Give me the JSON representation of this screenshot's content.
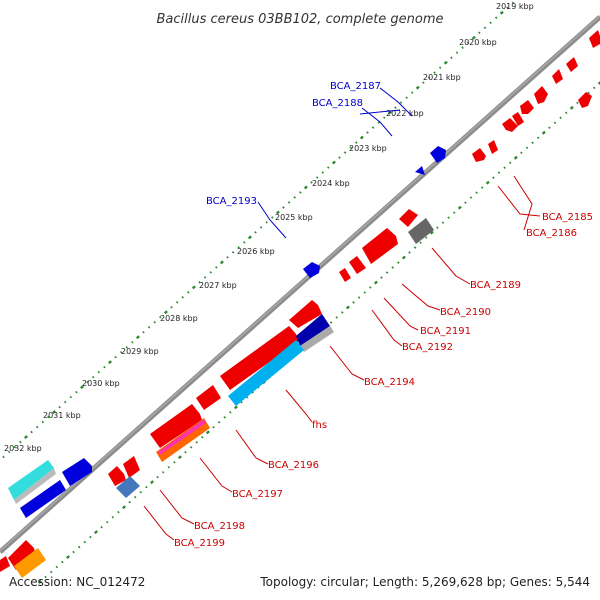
{
  "title": "Bacillus cereus 03BB102, complete genome",
  "footer": {
    "accession": "Accession: NC_012472",
    "summary": "Topology: circular; Length: 5,269,628 bp; Genes: 5,544"
  },
  "colors": {
    "backbone": "#8c8c8c",
    "tick_outer": "#2e8b2e",
    "tick_inner": "#2e8b2e",
    "label_forward": "#0000cc",
    "label_reverse": "#cc0000",
    "leader_forward": "#0000cc",
    "leader_reverse": "#cc0000"
  },
  "kbp_labels": [
    "2019 kbp",
    "2020 kbp",
    "2021 kbp",
    "2022 kbp",
    "2023 kbp",
    "2024 kbp",
    "2025 kbp",
    "2026 kbp",
    "2027 kbp",
    "2028 kbp",
    "2029 kbp",
    "2030 kbp",
    "2031 kbp",
    "2032 kbp"
  ],
  "gene_labels": {
    "BCA_2185": "BCA_2185",
    "BCA_2186": "BCA_2186",
    "BCA_2187": "BCA_2187",
    "BCA_2188": "BCA_2188",
    "BCA_2189": "BCA_2189",
    "BCA_2190": "BCA_2190",
    "BCA_2191": "BCA_2191",
    "BCA_2192": "BCA_2192",
    "BCA_2193": "BCA_2193",
    "BCA_2194": "BCA_2194",
    "fhs": "fhs",
    "BCA_2196": "BCA_2196",
    "BCA_2197": "BCA_2197",
    "BCA_2198": "BCA_2198",
    "BCA_2199": "BCA_2199"
  }
}
